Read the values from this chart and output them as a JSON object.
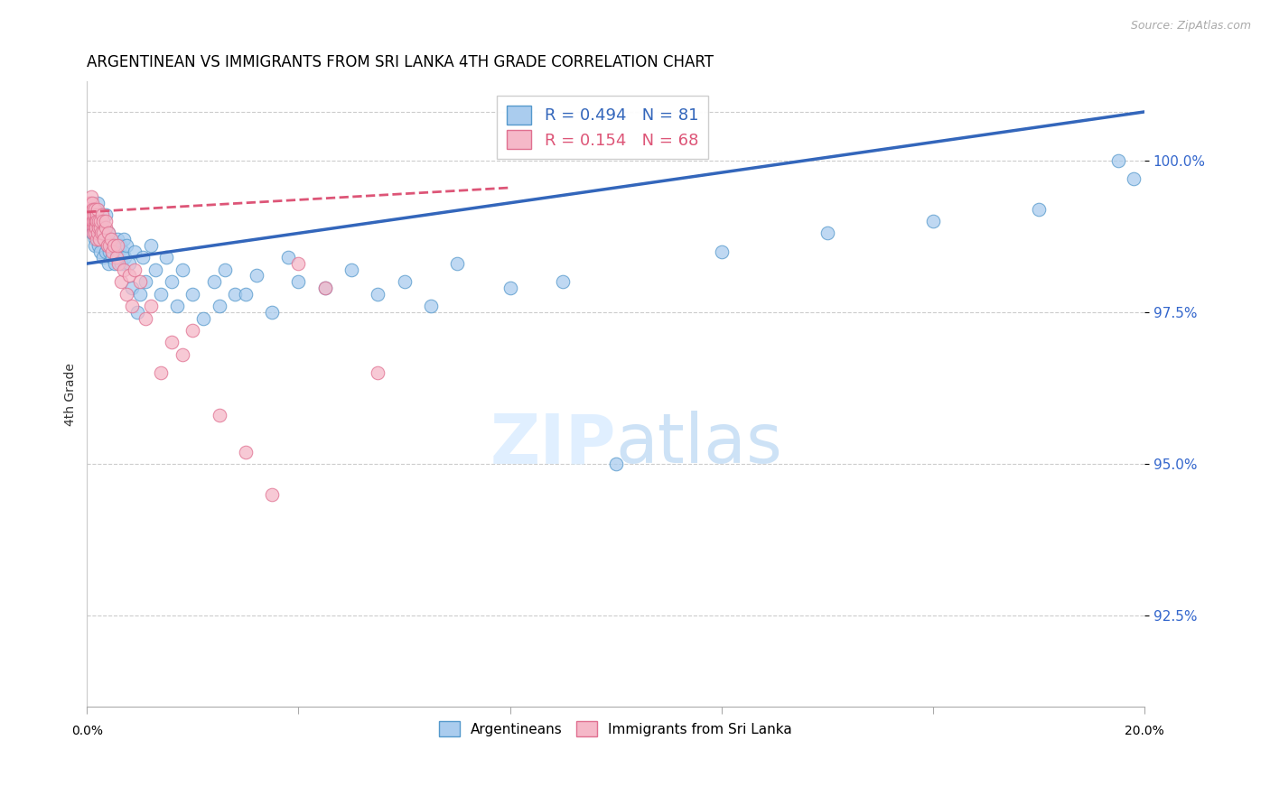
{
  "title": "ARGENTINEAN VS IMMIGRANTS FROM SRI LANKA 4TH GRADE CORRELATION CHART",
  "source": "Source: ZipAtlas.com",
  "ylabel_label": "4th Grade",
  "xmin": 0.0,
  "xmax": 20.0,
  "ymin": 91.0,
  "ymax": 101.3,
  "yticks": [
    92.5,
    95.0,
    97.5,
    100.0
  ],
  "ytick_labels": [
    "92.5%",
    "95.0%",
    "97.5%",
    "100.0%"
  ],
  "blue_r": 0.494,
  "blue_n": 81,
  "pink_r": 0.154,
  "pink_n": 68,
  "blue_color": "#aaccee",
  "pink_color": "#f5b8c8",
  "blue_edge_color": "#5599cc",
  "pink_edge_color": "#e07090",
  "blue_line_color": "#3366bb",
  "pink_line_color": "#dd5577",
  "legend_label_blue": "Argentineans",
  "legend_label_pink": "Immigrants from Sri Lanka",
  "blue_trend_x0": 0.0,
  "blue_trend_y0": 98.3,
  "blue_trend_x1": 20.0,
  "blue_trend_y1": 100.8,
  "pink_trend_x0": 0.0,
  "pink_trend_y0": 99.15,
  "pink_trend_x1": 8.0,
  "pink_trend_y1": 99.55,
  "blue_scatter_x": [
    0.05,
    0.07,
    0.08,
    0.09,
    0.1,
    0.1,
    0.12,
    0.13,
    0.14,
    0.15,
    0.15,
    0.17,
    0.18,
    0.2,
    0.2,
    0.22,
    0.25,
    0.25,
    0.27,
    0.3,
    0.3,
    0.32,
    0.35,
    0.35,
    0.38,
    0.4,
    0.4,
    0.42,
    0.45,
    0.48,
    0.5,
    0.52,
    0.55,
    0.58,
    0.6,
    0.62,
    0.65,
    0.68,
    0.7,
    0.72,
    0.75,
    0.8,
    0.85,
    0.9,
    0.95,
    1.0,
    1.05,
    1.1,
    1.2,
    1.3,
    1.4,
    1.5,
    1.6,
    1.7,
    1.8,
    2.0,
    2.2,
    2.4,
    2.5,
    2.6,
    2.8,
    3.0,
    3.2,
    3.5,
    3.8,
    4.0,
    4.5,
    5.0,
    5.5,
    6.0,
    6.5,
    7.0,
    8.0,
    9.0,
    10.0,
    12.0,
    14.0,
    16.0,
    18.0,
    19.5,
    19.8
  ],
  "blue_scatter_y": [
    99.0,
    99.1,
    98.9,
    99.2,
    99.0,
    98.8,
    98.9,
    99.1,
    98.7,
    99.0,
    98.6,
    98.9,
    99.2,
    98.8,
    99.3,
    98.6,
    98.9,
    98.5,
    99.0,
    98.7,
    98.4,
    98.8,
    98.5,
    99.1,
    98.6,
    98.3,
    98.8,
    98.5,
    98.7,
    98.4,
    98.6,
    98.3,
    98.5,
    98.7,
    98.4,
    98.6,
    98.3,
    98.5,
    98.7,
    98.4,
    98.6,
    98.3,
    97.9,
    98.5,
    97.5,
    97.8,
    98.4,
    98.0,
    98.6,
    98.2,
    97.8,
    98.4,
    98.0,
    97.6,
    98.2,
    97.8,
    97.4,
    98.0,
    97.6,
    98.2,
    97.8,
    97.8,
    98.1,
    97.5,
    98.4,
    98.0,
    97.9,
    98.2,
    97.8,
    98.0,
    97.6,
    98.3,
    97.9,
    98.0,
    95.0,
    98.5,
    98.8,
    99.0,
    99.2,
    100.0,
    99.7
  ],
  "pink_scatter_x": [
    0.03,
    0.04,
    0.05,
    0.06,
    0.07,
    0.07,
    0.08,
    0.08,
    0.09,
    0.09,
    0.1,
    0.1,
    0.11,
    0.11,
    0.12,
    0.12,
    0.13,
    0.14,
    0.14,
    0.15,
    0.15,
    0.16,
    0.17,
    0.18,
    0.18,
    0.19,
    0.2,
    0.2,
    0.21,
    0.22,
    0.23,
    0.25,
    0.25,
    0.27,
    0.28,
    0.3,
    0.3,
    0.32,
    0.35,
    0.35,
    0.38,
    0.4,
    0.42,
    0.45,
    0.48,
    0.5,
    0.55,
    0.58,
    0.6,
    0.65,
    0.7,
    0.75,
    0.8,
    0.85,
    0.9,
    1.0,
    1.1,
    1.2,
    1.4,
    1.6,
    1.8,
    2.0,
    2.5,
    3.0,
    3.5,
    4.0,
    4.5,
    5.5
  ],
  "pink_scatter_y": [
    99.3,
    99.1,
    99.0,
    99.2,
    99.3,
    99.0,
    99.4,
    99.1,
    99.2,
    99.0,
    99.3,
    99.1,
    98.9,
    99.2,
    99.0,
    98.8,
    99.1,
    98.9,
    99.0,
    98.8,
    99.2,
    99.0,
    98.9,
    99.1,
    98.7,
    99.0,
    98.8,
    99.2,
    98.9,
    99.0,
    98.7,
    98.9,
    99.0,
    98.8,
    99.1,
    98.8,
    99.0,
    98.7,
    98.9,
    99.0,
    98.6,
    98.8,
    98.6,
    98.7,
    98.5,
    98.6,
    98.4,
    98.6,
    98.3,
    98.0,
    98.2,
    97.8,
    98.1,
    97.6,
    98.2,
    98.0,
    97.4,
    97.6,
    96.5,
    97.0,
    96.8,
    97.2,
    95.8,
    95.2,
    94.5,
    98.3,
    97.9,
    96.5
  ]
}
